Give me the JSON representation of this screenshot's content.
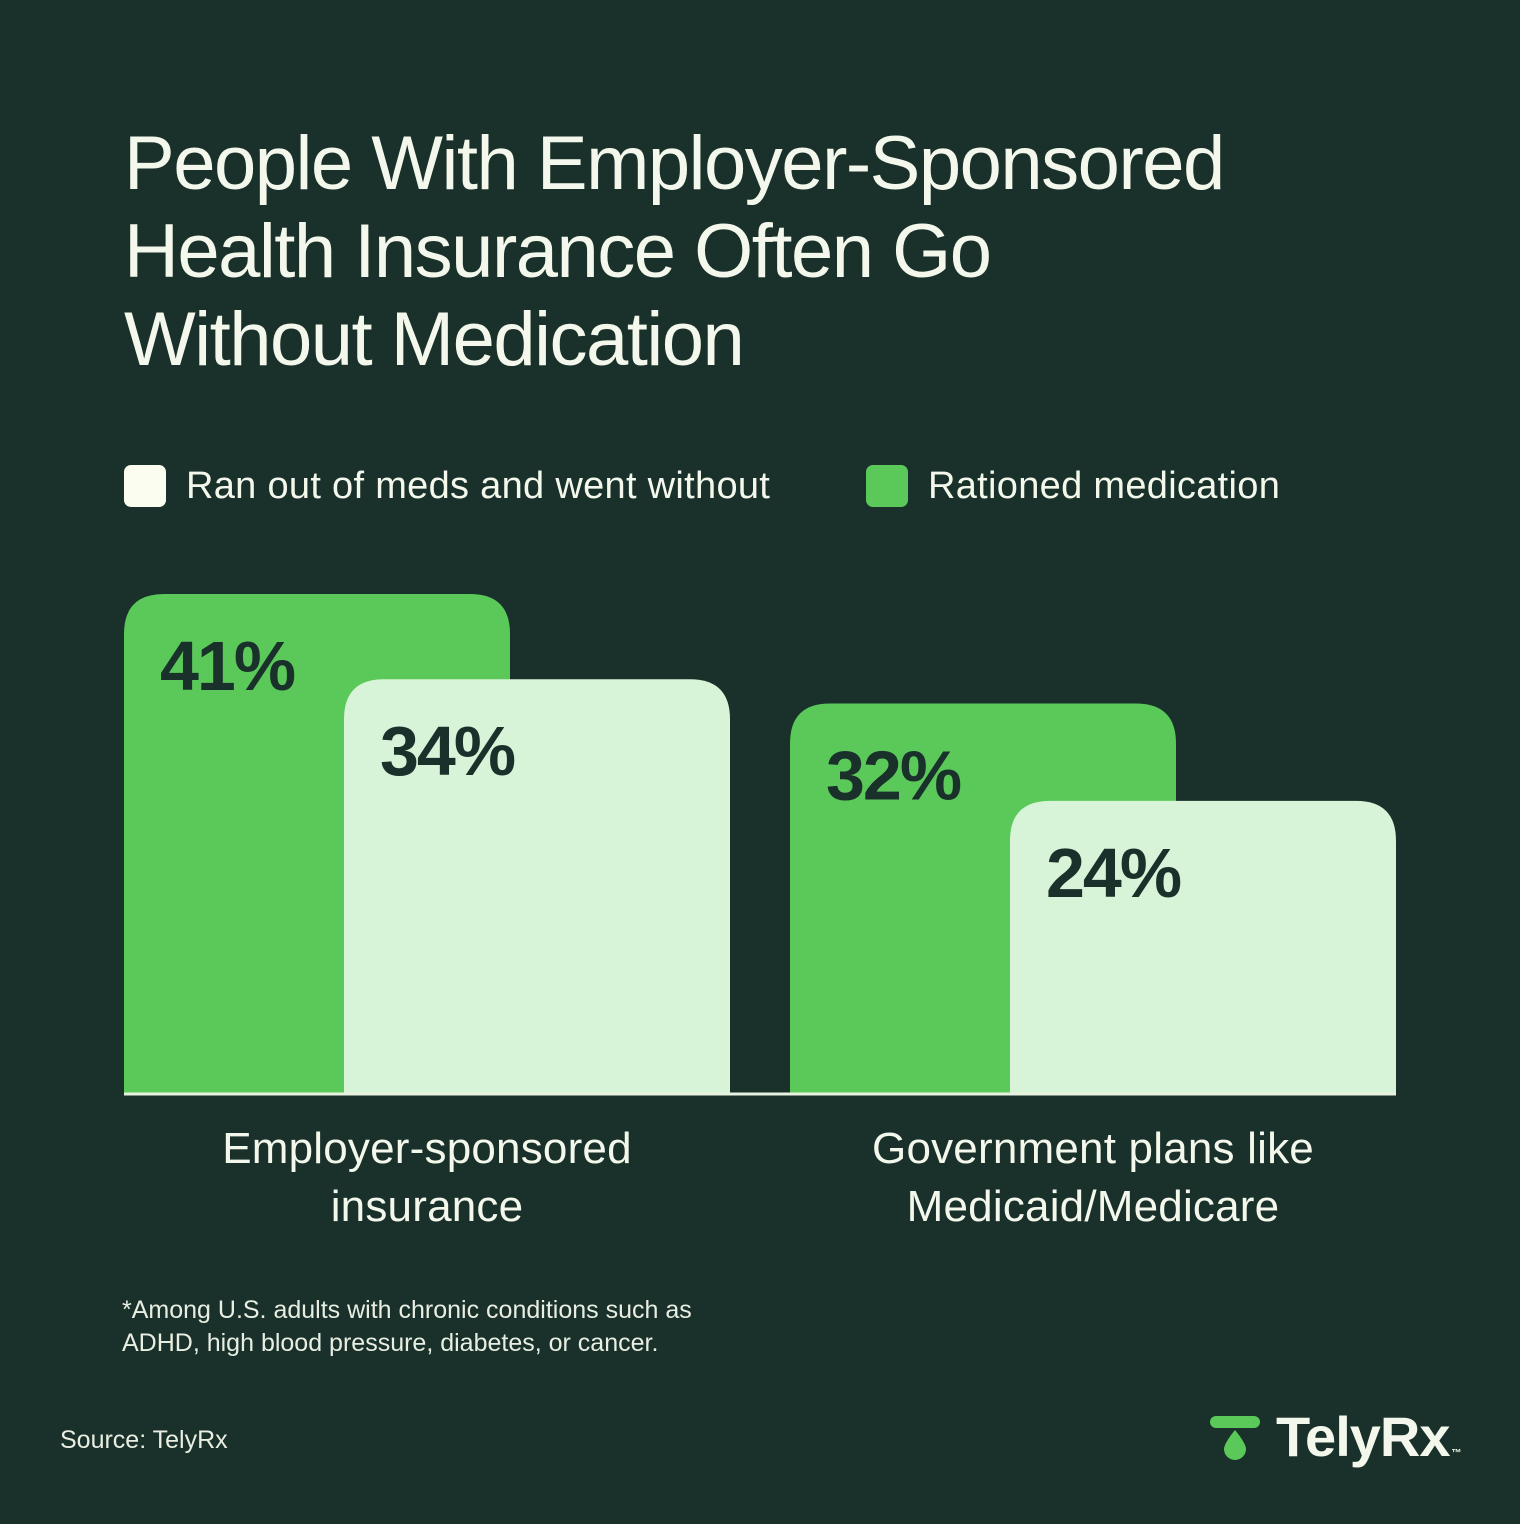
{
  "colors": {
    "background": "#19312a",
    "rationed": "#5bc85a",
    "ran_out": "#d7f3d8",
    "text_light": "#f4f8ec",
    "label_dark": "#19312a"
  },
  "title_lines": [
    "People With Employer-Sponsored",
    "Health Insurance Often Go",
    "Without Medication"
  ],
  "footnote_lines": [
    "*Among U.S. adults with chronic conditions such as",
    "ADHD, high blood pressure, diabetes, or cancer."
  ],
  "source": "Source: TelyRx",
  "logo": {
    "text": "TelyRx",
    "tm": "™",
    "icon": "telyrx-drop-icon"
  },
  "chart_data": {
    "type": "bar",
    "title": "People With Employer-Sponsored Health Insurance Often Go Without Medication",
    "xlabel": "",
    "ylabel": "",
    "categories": [
      [
        "Employer-sponsored",
        "insurance"
      ],
      [
        "Government plans like",
        "Medicaid/Medicare"
      ]
    ],
    "series": [
      {
        "name": "Rationed medication",
        "values": [
          41,
          32
        ],
        "labels": [
          "41%",
          "32%"
        ],
        "color": "#5bc85a"
      },
      {
        "name": "Ran out of meds and went without",
        "values": [
          34,
          24
        ],
        "labels": [
          "34%",
          "24%"
        ],
        "color": "#d7f3d8"
      }
    ],
    "legend": [
      {
        "label": "Ran out of meds and went without",
        "color": "#fbfdf0"
      },
      {
        "label": "Rationed medication",
        "color": "#5bc85a"
      }
    ],
    "legend_position": "top-left",
    "grid": false,
    "ylim": [
      0,
      41
    ]
  }
}
